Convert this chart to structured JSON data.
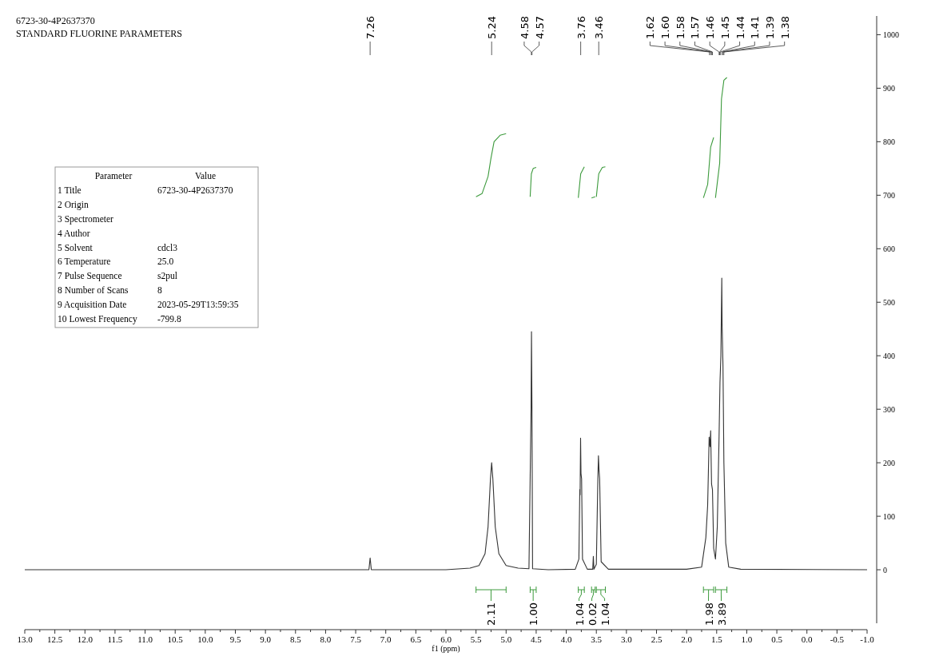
{
  "chart_data": {
    "type": "line",
    "title": "6723-30-4P2637370",
    "subtitle": "STANDARD FLUORINE PARAMETERS",
    "xlabel": "f1 (ppm)",
    "xlim": [
      13,
      -1
    ],
    "ylim": [
      -100,
      1035
    ],
    "xticks": [
      {
        "value": 13,
        "label": "13.0"
      },
      {
        "value": 12.75,
        "label": null
      },
      12.5,
      {
        "value": 12.25,
        "label": null
      },
      {
        "value": 12,
        "label": "12.0"
      },
      {
        "value": 11.75,
        "label": null
      },
      11.5,
      {
        "value": 11.25,
        "label": null
      },
      {
        "value": 11,
        "label": "11.0"
      },
      {
        "value": 10.75,
        "label": null
      },
      10.5,
      {
        "value": 10.25,
        "label": null
      },
      {
        "value": 10,
        "label": "10.0"
      },
      {
        "value": 9.75,
        "label": null
      },
      9.5,
      {
        "value": 9.25,
        "label": null
      },
      {
        "value": 9,
        "label": "9.0"
      },
      {
        "value": 8.75,
        "label": null
      },
      8.5,
      {
        "value": 8.25,
        "label": null
      },
      {
        "value": 8,
        "label": "8.0"
      },
      {
        "value": 7.75,
        "label": null
      },
      7.5,
      {
        "value": 7.25,
        "label": null
      },
      {
        "value": 7,
        "label": "7.0"
      },
      {
        "value": 6.75,
        "label": null
      },
      6.5,
      {
        "value": 6.25,
        "label": null
      },
      {
        "value": 6,
        "label": "6.0"
      },
      {
        "value": 5.75,
        "label": null
      },
      5.5,
      {
        "value": 5.25,
        "label": null
      },
      {
        "value": 5,
        "label": "5.0"
      },
      {
        "value": 4.75,
        "label": null
      },
      4.5,
      {
        "value": 4.25,
        "label": null
      },
      {
        "value": 4,
        "label": "4.0"
      },
      {
        "value": 3.75,
        "label": null
      },
      3.5,
      {
        "value": 3.25,
        "label": null
      },
      {
        "value": 3,
        "label": "3.0"
      },
      {
        "value": 2.75,
        "label": null
      },
      2.5,
      {
        "value": 2.25,
        "label": null
      },
      {
        "value": 2,
        "label": "2.0"
      },
      {
        "value": 1.75,
        "label": null
      },
      1.5,
      {
        "value": 1.25,
        "label": null
      },
      {
        "value": 1,
        "label": "1.0"
      },
      {
        "value": 0.75,
        "label": null
      },
      0.5,
      {
        "value": 0.25,
        "label": null
      },
      {
        "value": 0,
        "label": "0.0"
      },
      {
        "value": -0.25,
        "label": null
      },
      -0.5,
      {
        "value": -0.75,
        "label": null
      },
      {
        "value": -1,
        "label": "-1.0"
      }
    ],
    "yticks": [
      0,
      100,
      200,
      300,
      400,
      500,
      600,
      700,
      800,
      900,
      1000
    ],
    "series": [
      {
        "type": "line",
        "color": "#333333",
        "x": [
          13,
          7.4,
          7.28,
          7.26,
          7.24,
          6,
          5.6,
          5.45,
          5.35,
          5.3,
          5.26,
          5.24,
          5.22,
          5.18,
          5.12,
          5,
          4.8,
          4.62,
          4.585,
          4.578,
          4.57,
          4.56,
          4.3,
          3.85,
          3.79,
          3.775,
          3.77,
          3.762,
          3.755,
          3.745,
          3.73,
          3.65,
          3.56,
          3.55,
          3.54,
          3.5,
          3.475,
          3.465,
          3.455,
          3.445,
          3.42,
          3.3,
          2,
          1.75,
          1.68,
          1.65,
          1.625,
          1.61,
          1.6,
          1.585,
          1.57,
          1.55,
          1.52,
          1.49,
          1.46,
          1.445,
          1.43,
          1.415,
          1.41,
          1.395,
          1.38,
          1.35,
          1.3,
          1.1,
          -1
        ],
        "values": [
          0,
          0,
          0,
          22,
          0,
          0,
          3,
          8,
          30,
          80,
          170,
          200,
          170,
          80,
          30,
          8,
          3,
          2,
          300,
          445,
          300,
          2,
          0,
          1,
          20,
          150,
          140,
          246,
          180,
          170,
          20,
          1,
          1,
          25,
          1,
          10,
          170,
          213,
          185,
          170,
          15,
          1,
          1,
          5,
          60,
          120,
          248,
          230,
          260,
          160,
          150,
          40,
          20,
          80,
          250,
          350,
          400,
          545,
          460,
          380,
          200,
          50,
          5,
          1,
          0
        ]
      },
      {
        "type": "line",
        "color": "#3c9a3c",
        "x": [
          5.5,
          5.4,
          5.3,
          5.25,
          5.2,
          5.1,
          5
        ],
        "values": [
          697,
          703,
          735,
          770,
          800,
          812,
          815
        ]
      },
      {
        "type": "line",
        "color": "#3c9a3c",
        "x": [
          4.6,
          4.58,
          4.55,
          4.5
        ],
        "values": [
          697,
          740,
          750,
          752
        ]
      },
      {
        "type": "line",
        "color": "#3c9a3c",
        "x": [
          3.8,
          3.76,
          3.7
        ],
        "values": [
          695,
          740,
          753
        ]
      },
      {
        "type": "line",
        "color": "#3c9a3c",
        "x": [
          3.58,
          3.52
        ],
        "values": [
          695,
          697
        ]
      },
      {
        "type": "line",
        "color": "#3c9a3c",
        "x": [
          3.5,
          3.46,
          3.4,
          3.35
        ],
        "values": [
          697,
          740,
          752,
          753
        ]
      },
      {
        "type": "line",
        "color": "#3c9a3c",
        "x": [
          1.72,
          1.65,
          1.6,
          1.55
        ],
        "values": [
          695,
          720,
          790,
          808
        ]
      },
      {
        "type": "line",
        "color": "#3c9a3c",
        "x": [
          1.52,
          1.45,
          1.42,
          1.38,
          1.33
        ],
        "values": [
          695,
          760,
          880,
          915,
          920
        ]
      }
    ],
    "annotations": [
      {
        "text": "7.26",
        "x": 7.26
      },
      {
        "text": "5.24",
        "x": 5.24
      },
      {
        "text": "4.58",
        "x": 4.58
      },
      {
        "text": "4.57",
        "x": 4.57
      },
      {
        "text": "3.76",
        "x": 3.76
      },
      {
        "text": "3.46",
        "x": 3.46
      },
      {
        "text": "1.62",
        "x": 1.62
      },
      {
        "text": "1.60",
        "x": 1.6
      },
      {
        "text": "1.58",
        "x": 1.58
      },
      {
        "text": "1.57",
        "x": 1.57
      },
      {
        "text": "1.46",
        "x": 1.46
      },
      {
        "text": "1.45",
        "x": 1.45
      },
      {
        "text": "1.44",
        "x": 1.44
      },
      {
        "text": "1.41",
        "x": 1.41
      },
      {
        "text": "1.39",
        "x": 1.39
      },
      {
        "text": "1.38",
        "x": 1.38
      },
      "2.11",
      "1.00",
      "1.04",
      "0.02",
      "1.04",
      "1.98",
      "3.89",
      "Parameter\tValue",
      "1 Title\t6723-30-4P2637370",
      "2 Origin",
      "3 Spectrometer",
      "4 Author",
      "5 Solvent\tcdcl3",
      "6 Temperature\t25.0",
      "7 Pulse Sequence\ts2pul",
      "8 Number of Scans\t8",
      "9 Acquisition Date\t2023-05-29T13:59:35",
      "10 Lowest Frequency\t-799.8"
    ]
  }
}
